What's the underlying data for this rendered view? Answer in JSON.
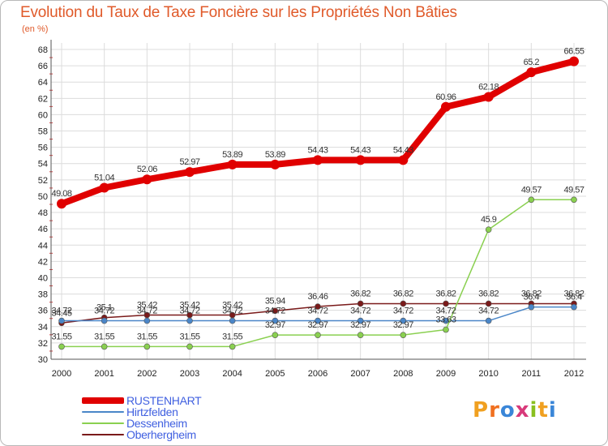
{
  "title": "Evolution du Taux de Taxe Foncière sur les Propriétés Non Bâties",
  "subtitle": "(en %)",
  "logo": {
    "text": "Proxiti",
    "letters": [
      "P",
      "r",
      "o",
      "x",
      "i",
      "t",
      "i"
    ],
    "colors": [
      "#f0a020",
      "#f07020",
      "#3a86d8",
      "#d83a7a",
      "#8ac020",
      "#f0a020",
      "#3a86d8"
    ]
  },
  "chart_data": {
    "type": "line",
    "title": "Evolution du Taux de Taxe Foncière sur les Propriétés Non Bâties",
    "ylabel": "(en %)",
    "categories": [
      "2000",
      "2001",
      "2002",
      "2003",
      "2004",
      "2005",
      "2006",
      "2007",
      "2008",
      "2009",
      "2010",
      "2011",
      "2012"
    ],
    "ylim": [
      30,
      68
    ],
    "yticks": [
      30,
      32,
      34,
      36,
      38,
      40,
      42,
      44,
      46,
      48,
      50,
      52,
      54,
      56,
      58,
      60,
      62,
      64,
      66,
      68
    ],
    "legend_position": "bottom-left",
    "series": [
      {
        "name": "RUSTENHART",
        "color": "#e00000",
        "values": [
          49.08,
          51.04,
          52.06,
          52.97,
          53.89,
          53.89,
          54.43,
          54.43,
          54.43,
          60.96,
          62.18,
          65.2,
          66.55
        ],
        "labels": [
          "49.08",
          "51.04",
          "52.06",
          "52.97",
          "53.89",
          "53.89",
          "54.43",
          "54.43",
          "54.43",
          "60.96",
          "62.18",
          "65.2",
          "66.55"
        ]
      },
      {
        "name": "Hirtzfelden",
        "color": "#4a86c8",
        "values": [
          34.72,
          34.72,
          34.72,
          34.72,
          34.72,
          34.72,
          34.72,
          34.72,
          34.72,
          34.72,
          34.72,
          36.4,
          36.4
        ],
        "labels": [
          "34.72",
          "34.72",
          "34.72",
          "34.72",
          "34.72",
          "34.72",
          "34.72",
          "34.72",
          "34.72",
          "34.72",
          "34.72",
          "36.4",
          "36.4"
        ]
      },
      {
        "name": "Dessenheim",
        "color": "#8ad050",
        "values": [
          31.55,
          31.55,
          31.55,
          31.55,
          31.55,
          32.97,
          32.97,
          32.97,
          32.97,
          33.63,
          45.9,
          49.57,
          49.57
        ],
        "labels": [
          "31.55",
          "31.55",
          "31.55",
          "31.55",
          "31.55",
          "32.97",
          "32.97",
          "32.97",
          "32.97",
          "33.63",
          "45.9",
          "49.57",
          "49.57"
        ]
      },
      {
        "name": "Oberhergheim",
        "color": "#7a1a1a",
        "values": [
          34.45,
          35.1,
          35.42,
          35.42,
          35.42,
          35.94,
          36.46,
          36.82,
          36.82,
          36.82,
          36.82,
          36.82,
          36.82
        ],
        "labels": [
          "34.45",
          "35.1",
          "35.42",
          "35.42",
          "35.42",
          "35.94",
          "36.46",
          "36.82",
          "36.82",
          "36.82",
          "36.82",
          "36.82",
          "36.82"
        ]
      }
    ]
  }
}
